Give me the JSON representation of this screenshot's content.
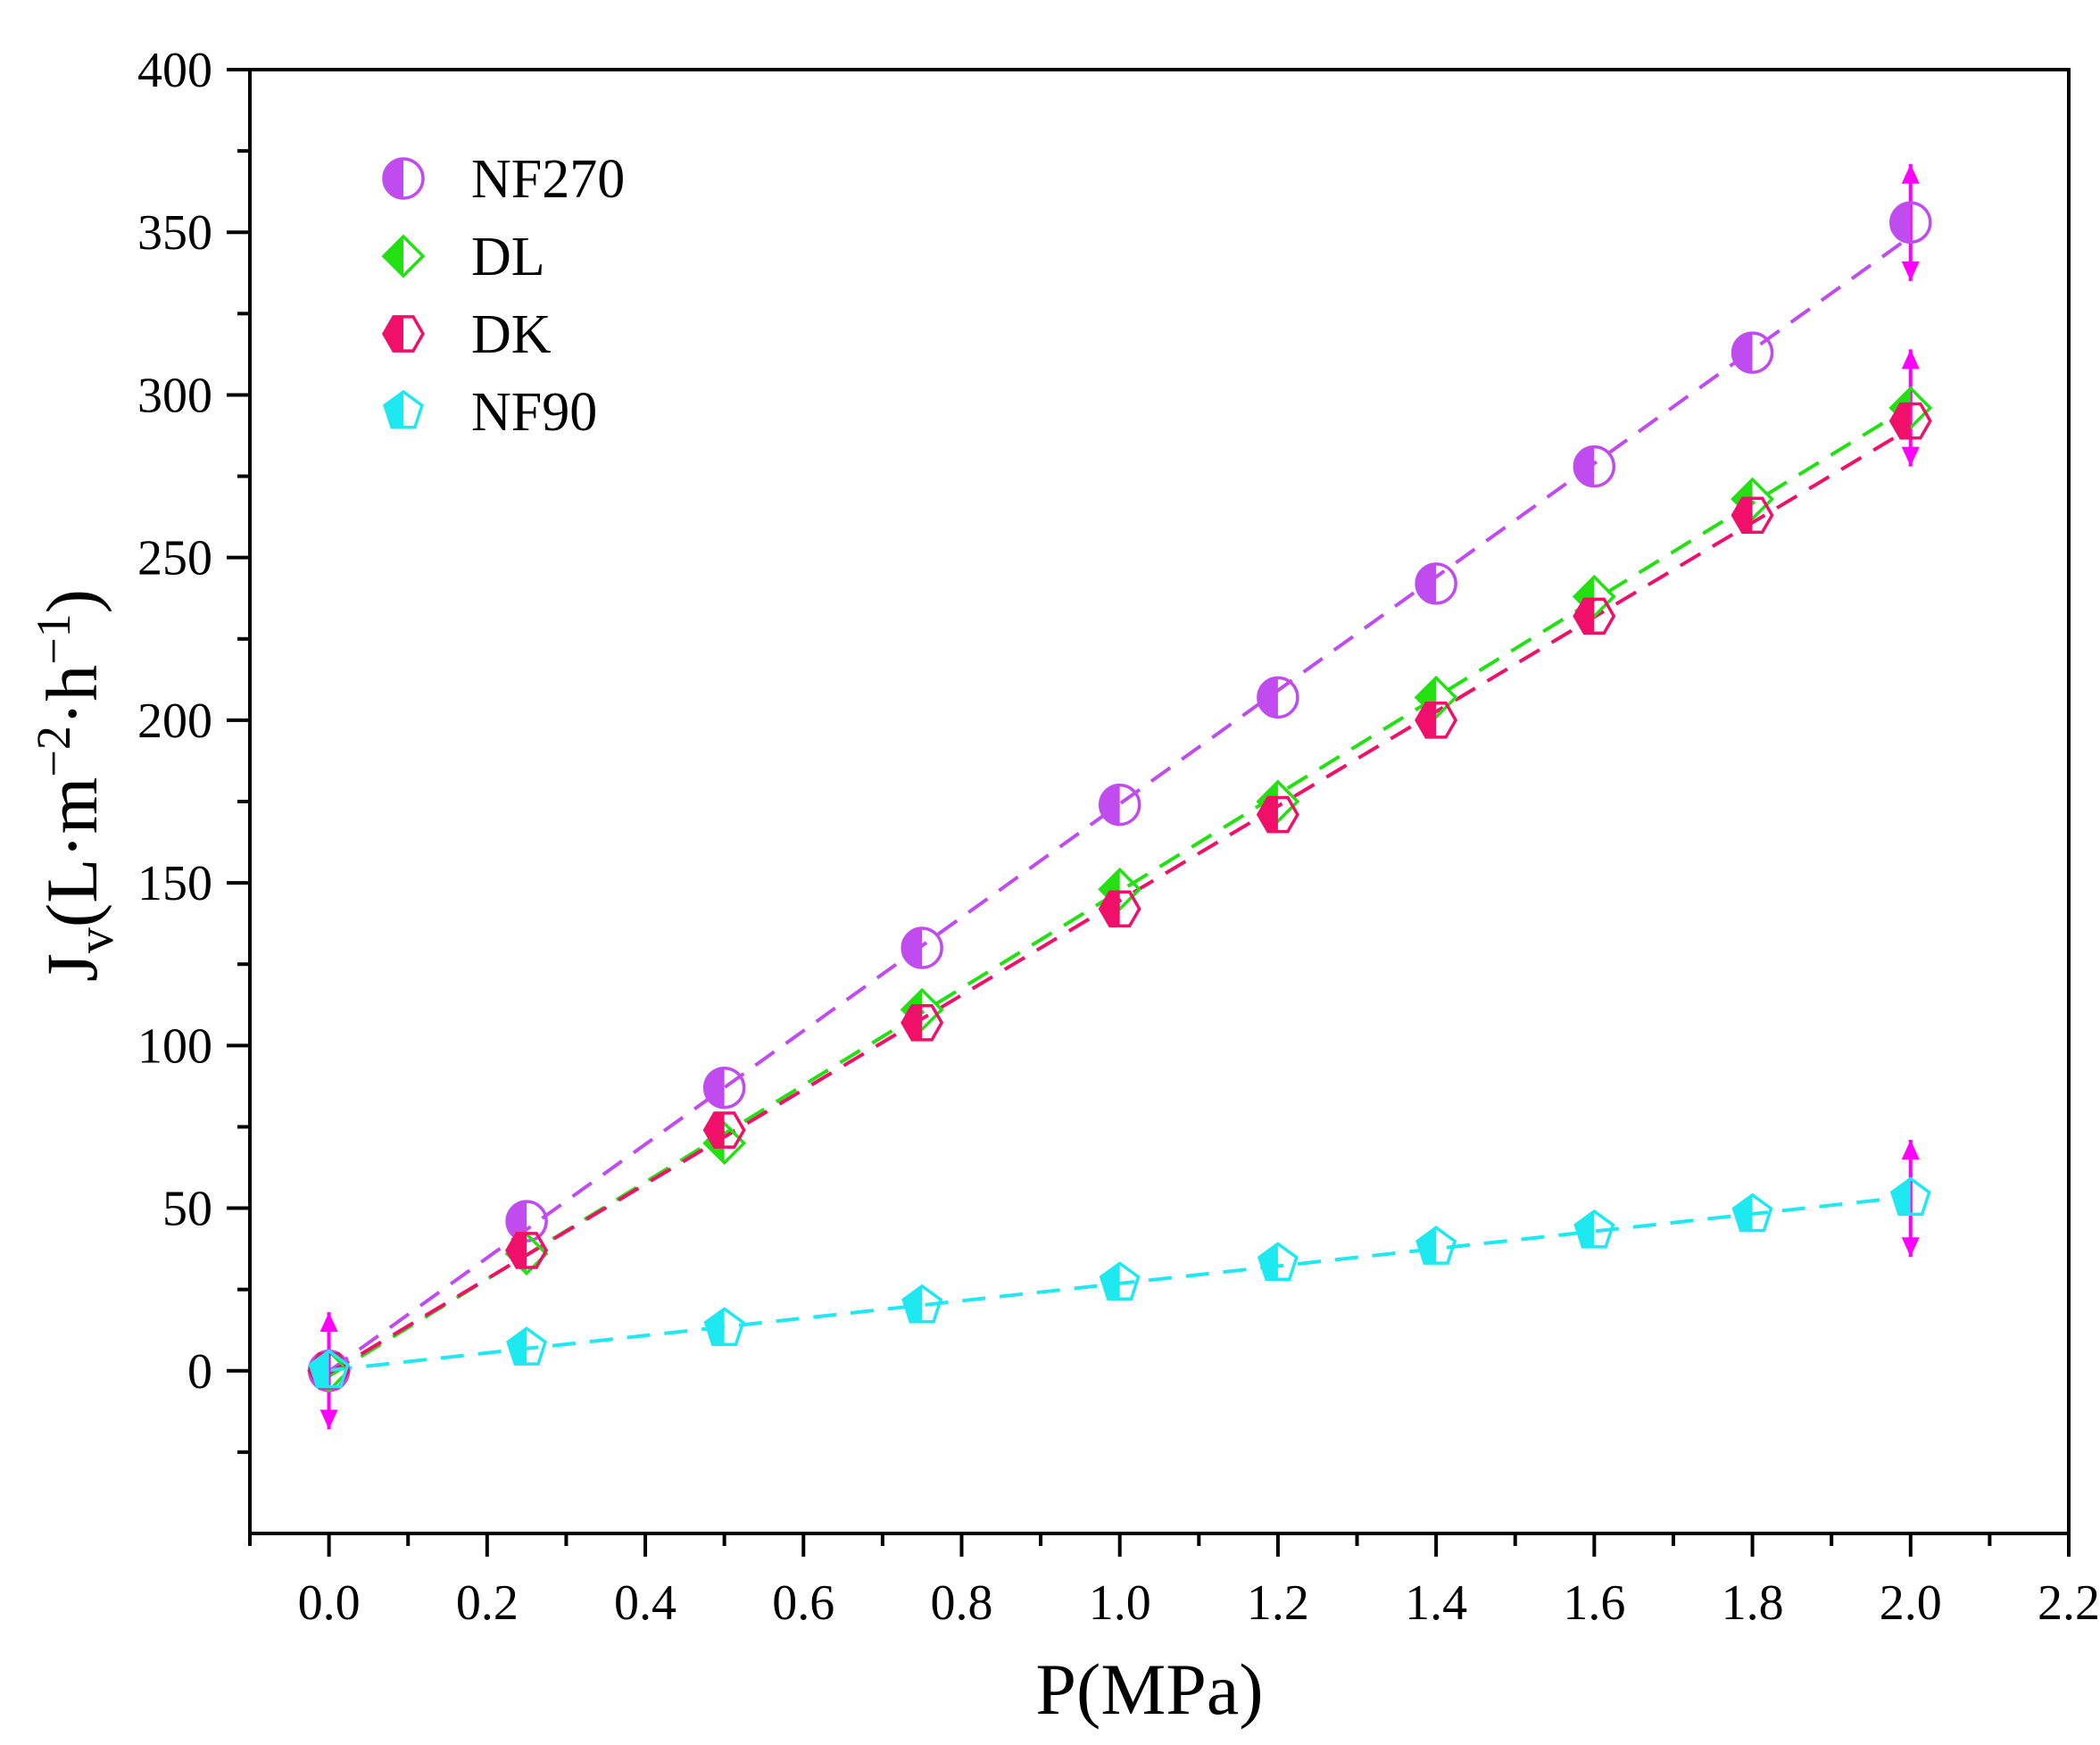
{
  "chart_data": {
    "type": "scatter",
    "title": "",
    "xlabel": "P(MPa)",
    "ylabel": {
      "main": "J",
      "sub": "v",
      "paren_open": "(L·m",
      "sup1": "−2",
      "mid": "·h",
      "sup2": "−1",
      "paren_close": ")"
    },
    "xlim": [
      -0.1,
      2.2
    ],
    "ylim": [
      -50,
      400
    ],
    "x_ticks": [
      0.0,
      0.2,
      0.4,
      0.6,
      0.8,
      1.0,
      1.2,
      1.4,
      1.6,
      1.8,
      2.0,
      2.2
    ],
    "x_tick_labels": [
      "0.0",
      "0.2",
      "0.4",
      "0.6",
      "0.8",
      "1.0",
      "1.2",
      "1.4",
      "1.6",
      "1.8",
      "2.0",
      "2.2"
    ],
    "y_ticks": [
      0,
      50,
      100,
      150,
      200,
      250,
      300,
      350,
      400
    ],
    "y_tick_labels": [
      "0",
      "50",
      "100",
      "150",
      "200",
      "250",
      "300",
      "350",
      "400"
    ],
    "grid": false,
    "legend_position": "top-left",
    "x": [
      0.0,
      0.25,
      0.5,
      0.75,
      1.0,
      1.2,
      1.4,
      1.6,
      1.8,
      2.0
    ],
    "series": [
      {
        "name": "NF270",
        "marker": "circle",
        "color": "#c04cf0",
        "fit_color": "#c04cf0",
        "values": [
          0,
          46,
          87,
          130,
          174,
          207,
          242,
          278,
          313,
          353
        ]
      },
      {
        "name": "DL",
        "marker": "diamond",
        "color": "#22e011",
        "fit_color": "#22e011",
        "values": [
          0,
          36,
          70,
          111,
          148,
          175,
          207,
          238,
          268,
          296
        ]
      },
      {
        "name": "DK",
        "marker": "hexagon",
        "color": "#f0106a",
        "fit_color": "#f0106a",
        "values": [
          0,
          37,
          74,
          107,
          142,
          171,
          200,
          232,
          263,
          292
        ]
      },
      {
        "name": "NF90",
        "marker": "pentagon",
        "color": "#1ee8f0",
        "fit_color": "#1ee8f0",
        "values": [
          0,
          7,
          13,
          20,
          27,
          33,
          38,
          43,
          48,
          53
        ]
      }
    ],
    "error_bars": {
      "color": "#ff00ff",
      "items": [
        {
          "x": 0.0,
          "y": 0,
          "err": 18
        },
        {
          "x": 2.0,
          "y": 353,
          "err": 18
        },
        {
          "x": 2.0,
          "y": 296,
          "err": 18
        },
        {
          "x": 2.0,
          "y": 53,
          "err": 18
        }
      ]
    }
  }
}
